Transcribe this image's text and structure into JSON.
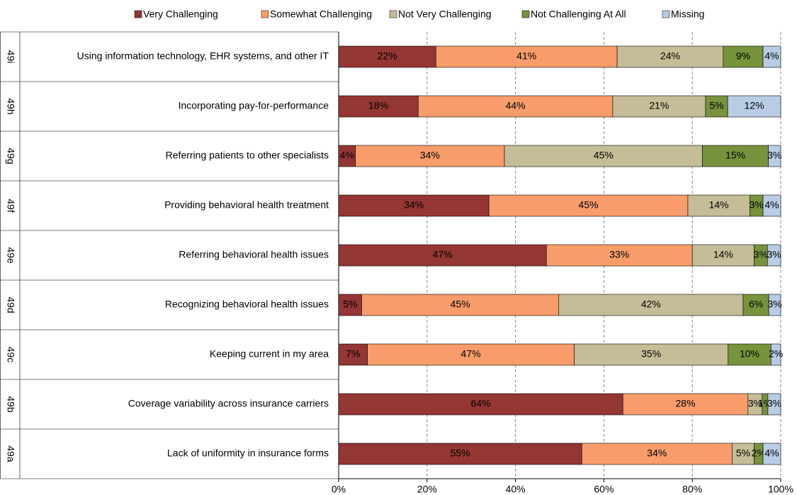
{
  "chart_data": {
    "type": "stacked-bar-horizontal",
    "codes": [
      "49i",
      "49h",
      "49g",
      "49f",
      "49e",
      "49d",
      "49c",
      "49b",
      "49a"
    ],
    "categories": [
      "Using information technology, EHR systems, and other IT",
      "Incorporating pay-for-performance",
      "Referring patients to other specialists",
      "Providing behavioral health treatment",
      "Referring behavioral health issues",
      "Recognizing behavioral health issues",
      "Keeping current in my area",
      "Coverage variability across insurance carriers",
      "Lack of uniformity in insurance forms"
    ],
    "series": [
      {
        "name": "Very Challenging",
        "color": "#943634",
        "label_color": "#ffffff",
        "values": [
          22,
          18,
          3.8,
          34,
          47,
          5.2,
          6.5,
          64.3,
          55
        ],
        "value_labels": [
          "22%",
          "18%",
          "4%",
          "34%",
          "47%",
          "5%",
          "7%",
          "64%",
          "55%"
        ]
      },
      {
        "name": "Somewhat Challenging",
        "color": "#f79c6a",
        "label_color": "#000000",
        "values": [
          41,
          44,
          33.7,
          45,
          33,
          44.6,
          46.8,
          28.3,
          34
        ],
        "value_labels": [
          "41%",
          "44%",
          "34%",
          "45%",
          "33%",
          "45%",
          "47%",
          "28%",
          "34%"
        ]
      },
      {
        "name": "Not Very Challenging",
        "color": "#c4bd97",
        "label_color": "#000000",
        "values": [
          24,
          21,
          44.8,
          14,
          14,
          41.7,
          34.8,
          3.2,
          5
        ],
        "value_labels": [
          "24%",
          "21%",
          "45%",
          "14%",
          "14%",
          "42%",
          "35%",
          "3%",
          "5%"
        ]
      },
      {
        "name": "Not Challenging At All",
        "color": "#77933c",
        "label_color": "#000000",
        "values": [
          9,
          5,
          14.9,
          3,
          3,
          5.8,
          9.7,
          1.3,
          2
        ],
        "value_labels": [
          "9%",
          "5%",
          "15%",
          "3%",
          "3%",
          "6%",
          "10%",
          "1%",
          "2%"
        ]
      },
      {
        "name": "Missing",
        "color": "#b8cce4",
        "label_color": "#000000",
        "values": [
          4,
          12,
          2.8,
          4,
          3,
          2.7,
          2.2,
          2.9,
          4
        ],
        "value_labels": [
          "4%",
          "12%",
          "3%",
          "4%",
          "3%",
          "3%",
          "2%",
          "3%",
          "4%"
        ]
      }
    ],
    "xlim": [
      0,
      100
    ],
    "xticks": [
      {
        "value": 0,
        "label": "0%"
      },
      {
        "value": 20,
        "label": "20%"
      },
      {
        "value": 40,
        "label": "40%"
      },
      {
        "value": 60,
        "label": "60%"
      },
      {
        "value": 80,
        "label": "80%"
      },
      {
        "value": 100,
        "label": "100%"
      }
    ],
    "grid": true,
    "legend": "top"
  }
}
